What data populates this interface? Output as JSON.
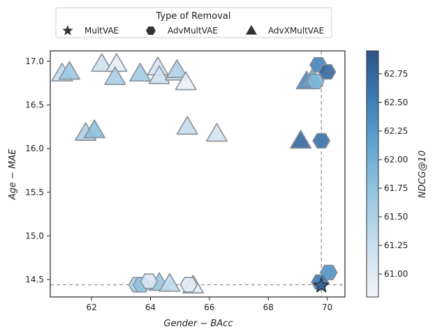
{
  "chart_data": {
    "type": "scatter",
    "xlabel": "Gender − BAcc",
    "ylabel": "Age − MAE",
    "colorbar_label": "NDCG@10",
    "xlim": [
      60.6,
      70.6
    ],
    "ylim": [
      14.3,
      17.12
    ],
    "xticks": [
      62,
      64,
      66,
      68,
      70
    ],
    "yticks": [
      14.5,
      15.0,
      15.5,
      16.0,
      16.5,
      17.0
    ],
    "color_range": [
      60.8,
      62.95
    ],
    "colorbar_ticks": [
      61.0,
      61.25,
      61.5,
      61.75,
      62.0,
      62.25,
      62.5,
      62.75
    ],
    "reference_lines": {
      "x": 69.8,
      "y": 14.44
    },
    "legend": {
      "title": "Type of Removal",
      "entries": [
        {
          "label": "MultVAE",
          "marker": "star"
        },
        {
          "label": "AdvMultVAE",
          "marker": "hexagon"
        },
        {
          "label": "AdvXMultVAE",
          "marker": "triangle"
        }
      ]
    },
    "series": [
      {
        "name": "MultVAE",
        "marker": "star",
        "points": [
          {
            "x": 69.8,
            "y": 14.43,
            "c": 62.8
          }
        ]
      },
      {
        "name": "AdvMultVAE",
        "marker": "hexagon",
        "points": [
          {
            "x": 69.7,
            "y": 16.96,
            "c": 62.45
          },
          {
            "x": 70.0,
            "y": 16.88,
            "c": 62.75
          },
          {
            "x": 69.6,
            "y": 16.77,
            "c": 61.9
          },
          {
            "x": 69.8,
            "y": 16.09,
            "c": 62.65
          },
          {
            "x": 70.05,
            "y": 14.58,
            "c": 62.3
          },
          {
            "x": 69.75,
            "y": 14.47,
            "c": 62.6
          },
          {
            "x": 63.55,
            "y": 14.44,
            "c": 61.5
          },
          {
            "x": 63.7,
            "y": 14.44,
            "c": 61.75
          },
          {
            "x": 63.95,
            "y": 14.48,
            "c": 61.1
          },
          {
            "x": 65.3,
            "y": 14.44,
            "c": 61.0
          }
        ]
      },
      {
        "name": "AdvXMultVAE",
        "marker": "triangle",
        "points": [
          {
            "x": 61.0,
            "y": 16.86,
            "c": 61.3
          },
          {
            "x": 61.25,
            "y": 16.88,
            "c": 61.65
          },
          {
            "x": 62.35,
            "y": 16.97,
            "c": 61.2
          },
          {
            "x": 62.85,
            "y": 16.97,
            "c": 60.95
          },
          {
            "x": 62.8,
            "y": 16.82,
            "c": 61.55
          },
          {
            "x": 63.65,
            "y": 16.86,
            "c": 61.6
          },
          {
            "x": 64.25,
            "y": 16.93,
            "c": 61.1
          },
          {
            "x": 64.3,
            "y": 16.83,
            "c": 61.2
          },
          {
            "x": 64.85,
            "y": 16.87,
            "c": 61.35
          },
          {
            "x": 64.9,
            "y": 16.9,
            "c": 61.45
          },
          {
            "x": 65.2,
            "y": 16.76,
            "c": 60.9
          },
          {
            "x": 61.8,
            "y": 16.18,
            "c": 61.5
          },
          {
            "x": 62.1,
            "y": 16.21,
            "c": 61.8
          },
          {
            "x": 65.25,
            "y": 16.25,
            "c": 61.3
          },
          {
            "x": 66.25,
            "y": 16.17,
            "c": 61.15
          },
          {
            "x": 69.1,
            "y": 16.09,
            "c": 62.75
          },
          {
            "x": 69.3,
            "y": 16.77,
            "c": 62.4
          },
          {
            "x": 69.5,
            "y": 16.8,
            "c": 62.1
          },
          {
            "x": 64.3,
            "y": 14.46,
            "c": 61.7
          },
          {
            "x": 64.65,
            "y": 14.45,
            "c": 61.35
          },
          {
            "x": 65.45,
            "y": 14.43,
            "c": 61.0
          }
        ]
      }
    ]
  }
}
